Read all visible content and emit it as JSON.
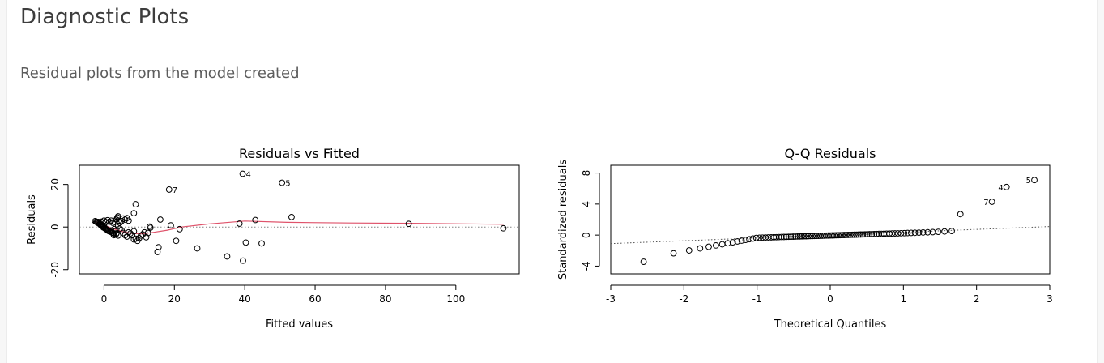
{
  "page": {
    "title": "Diagnostic Plots",
    "subtitle": "Residual plots from the model created"
  },
  "colors": {
    "smooth": "#DF536B",
    "reference": "#808080",
    "point": "#000000"
  },
  "chart_data": [
    {
      "type": "scatter",
      "title": "Residuals vs Fitted",
      "xlabel": "Fitted values",
      "ylabel": "Residuals",
      "xlim": [
        -7,
        118
      ],
      "ylim": [
        -22,
        29
      ],
      "xticks": [
        0,
        20,
        40,
        60,
        80,
        100
      ],
      "yticks": [
        -20,
        0,
        20
      ],
      "reference_line": {
        "y": 0,
        "style": "dotted"
      },
      "labeled_points": [
        {
          "label": "4",
          "x": 39.4,
          "y": 25.0
        },
        {
          "label": "5",
          "x": 50.6,
          "y": 20.8
        },
        {
          "label": "7",
          "x": 18.5,
          "y": 17.6
        }
      ],
      "points": [
        [
          -2.5,
          2.8
        ],
        [
          -2.2,
          2.5
        ],
        [
          -2.0,
          2.2
        ],
        [
          -1.8,
          2.0
        ],
        [
          -1.6,
          2.4
        ],
        [
          -1.5,
          1.8
        ],
        [
          -1.3,
          1.5
        ],
        [
          -1.1,
          1.3
        ],
        [
          -1.0,
          1.0
        ],
        [
          -0.8,
          1.2
        ],
        [
          -0.6,
          0.8
        ],
        [
          -0.5,
          0.5
        ],
        [
          -0.3,
          0.2
        ],
        [
          -0.2,
          -0.2
        ],
        [
          0.0,
          0.5
        ],
        [
          0.2,
          -0.5
        ],
        [
          0.4,
          -0.8
        ],
        [
          0.6,
          -1.0
        ],
        [
          0.8,
          -1.2
        ],
        [
          1.0,
          -1.5
        ],
        [
          1.2,
          -1.8
        ],
        [
          1.5,
          -2.0
        ],
        [
          1.8,
          -2.2
        ],
        [
          2.0,
          -1.6
        ],
        [
          2.2,
          -2.5
        ],
        [
          2.5,
          -2.8
        ],
        [
          2.8,
          -3.0
        ],
        [
          3.0,
          -1.0
        ],
        [
          3.2,
          -2.0
        ],
        [
          3.5,
          -3.2
        ],
        [
          -0.8,
          2.5
        ],
        [
          0.0,
          3.0
        ],
        [
          0.4,
          2.2
        ],
        [
          1.0,
          3.2
        ],
        [
          1.5,
          2.5
        ],
        [
          2.0,
          3.0
        ],
        [
          2.5,
          2.0
        ],
        [
          3.0,
          2.6
        ],
        [
          3.5,
          3.5
        ],
        [
          3.8,
          4.5
        ],
        [
          4.0,
          5.0
        ],
        [
          4.2,
          3.0
        ],
        [
          4.5,
          2.0
        ],
        [
          5.0,
          2.8
        ],
        [
          5.5,
          4.0
        ],
        [
          6.0,
          3.5
        ],
        [
          6.5,
          4.2
        ],
        [
          7.0,
          3.0
        ],
        [
          4.0,
          0.5
        ],
        [
          4.5,
          -0.8
        ],
        [
          5.0,
          -1.5
        ],
        [
          5.5,
          -2.8
        ],
        [
          6.0,
          -3.8
        ],
        [
          6.5,
          -4.5
        ],
        [
          7.0,
          -2.5
        ],
        [
          7.5,
          -3.0
        ],
        [
          8.0,
          -3.8
        ],
        [
          8.5,
          -2.0
        ],
        [
          9.0,
          -5.5
        ],
        [
          9.5,
          -6.5
        ],
        [
          8.5,
          -5.8
        ],
        [
          10.0,
          -5.2
        ],
        [
          10.5,
          -4.0
        ],
        [
          11.0,
          -3.5
        ],
        [
          11.5,
          -2.5
        ],
        [
          12.0,
          -4.8
        ],
        [
          12.5,
          -2.8
        ],
        [
          13.0,
          0.2
        ],
        [
          13.2,
          -0.3
        ],
        [
          4.0,
          -4.0
        ],
        [
          3.5,
          -3.0
        ],
        [
          2.8,
          -3.8
        ],
        [
          8.5,
          6.5
        ],
        [
          9.0,
          10.7
        ],
        [
          16.0,
          3.5
        ],
        [
          15.5,
          -9.5
        ],
        [
          15.2,
          -11.7
        ],
        [
          19.0,
          0.8
        ],
        [
          20.5,
          -6.5
        ],
        [
          21.5,
          -1.0
        ],
        [
          18.5,
          17.6
        ],
        [
          26.5,
          -10.0
        ],
        [
          35.0,
          -13.8
        ],
        [
          38.5,
          1.6
        ],
        [
          39.4,
          25.0
        ],
        [
          39.5,
          -15.8
        ],
        [
          40.3,
          -7.3
        ],
        [
          43.0,
          3.3
        ],
        [
          44.8,
          -7.7
        ],
        [
          50.6,
          20.8
        ],
        [
          53.3,
          4.7
        ],
        [
          86.6,
          1.5
        ],
        [
          113.5,
          -0.6
        ]
      ],
      "smooth": [
        [
          -2.5,
          2.6
        ],
        [
          0,
          1.0
        ],
        [
          2,
          -0.5
        ],
        [
          5,
          -2.0
        ],
        [
          8,
          -3.0
        ],
        [
          11,
          -3.2
        ],
        [
          14,
          -2.5
        ],
        [
          18,
          -1.5
        ],
        [
          22,
          0.0
        ],
        [
          30,
          1.5
        ],
        [
          40,
          2.8
        ],
        [
          52,
          2.2
        ],
        [
          70,
          1.9
        ],
        [
          90,
          1.7
        ],
        [
          113.5,
          1.3
        ]
      ]
    },
    {
      "type": "scatter",
      "title": "Q-Q Residuals",
      "xlabel": "Theoretical Quantiles",
      "ylabel": "Standardized residuals",
      "xlim": [
        -3,
        3
      ],
      "ylim": [
        -5,
        9
      ],
      "xticks": [
        -3,
        -2,
        -1,
        0,
        1,
        2,
        3
      ],
      "yticks": [
        -4,
        0,
        4,
        8
      ],
      "reference_line": {
        "from": [
          -3,
          -1.1
        ],
        "to": [
          3,
          1.1
        ],
        "style": "dotted"
      },
      "labeled_points": [
        {
          "label": "5",
          "x": 2.79,
          "y": 7.1
        },
        {
          "label": "4",
          "x": 2.41,
          "y": 6.2
        },
        {
          "label": "7",
          "x": 2.21,
          "y": 4.3
        }
      ],
      "n_points": 93
    }
  ]
}
